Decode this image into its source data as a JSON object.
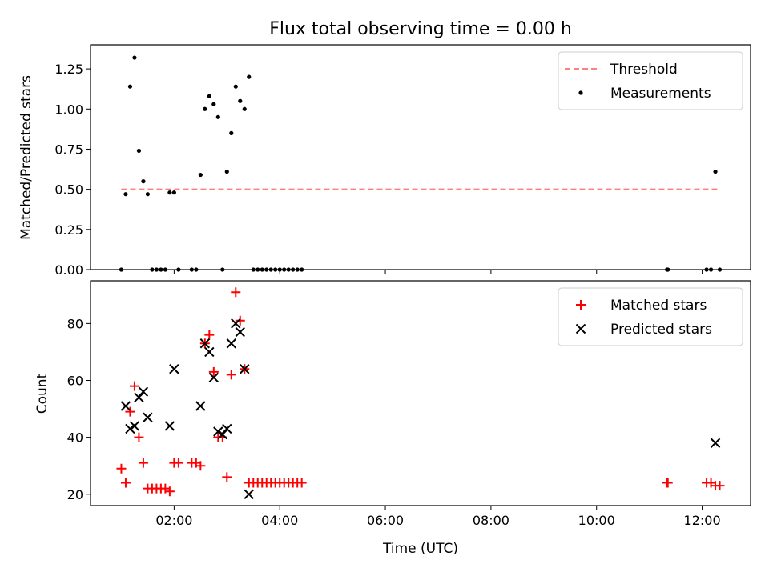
{
  "chart_data": [
    {
      "type": "scatter",
      "title": "Flux total observing time = 0.00 h",
      "xlabel": "",
      "ylabel": "Matched/Predicted stars",
      "ylim": [
        0,
        1.4
      ],
      "yticks": [
        "0.00",
        "0.25",
        "0.50",
        "0.75",
        "1.00",
        "1.25"
      ],
      "yticks_values": [
        0,
        0.25,
        0.5,
        0.75,
        1.0,
        1.25
      ],
      "x_ticks_labels_shown": false,
      "legend_position": "upper right",
      "threshold": {
        "name": "Threshold",
        "value": 0.5,
        "x_start": "01:00",
        "x_end": "12:20",
        "color": "#ff7f7f",
        "style": "dashed"
      },
      "series": [
        {
          "name": "Measurements",
          "color": "#000000",
          "marker": "dot",
          "points": [
            [
              "01:00",
              0.0
            ],
            [
              "01:05",
              0.47
            ],
            [
              "01:10",
              1.14
            ],
            [
              "01:15",
              1.32
            ],
            [
              "01:20",
              0.74
            ],
            [
              "01:25",
              0.55
            ],
            [
              "01:30",
              0.47
            ],
            [
              "01:35",
              0.0
            ],
            [
              "01:40",
              0.0
            ],
            [
              "01:45",
              0.0
            ],
            [
              "01:50",
              0.0
            ],
            [
              "01:55",
              0.48
            ],
            [
              "02:00",
              0.48
            ],
            [
              "02:05",
              0.0
            ],
            [
              "02:20",
              0.0
            ],
            [
              "02:25",
              0.0
            ],
            [
              "02:30",
              0.59
            ],
            [
              "02:35",
              1.0
            ],
            [
              "02:40",
              1.08
            ],
            [
              "02:45",
              1.03
            ],
            [
              "02:50",
              0.95
            ],
            [
              "02:55",
              0.0
            ],
            [
              "03:00",
              0.61
            ],
            [
              "03:05",
              0.85
            ],
            [
              "03:10",
              1.14
            ],
            [
              "03:15",
              1.05
            ],
            [
              "03:20",
              1.0
            ],
            [
              "03:25",
              1.2
            ],
            [
              "03:30",
              0.0
            ],
            [
              "03:35",
              0.0
            ],
            [
              "03:40",
              0.0
            ],
            [
              "03:45",
              0.0
            ],
            [
              "03:50",
              0.0
            ],
            [
              "03:55",
              0.0
            ],
            [
              "04:00",
              0.0
            ],
            [
              "04:05",
              0.0
            ],
            [
              "04:10",
              0.0
            ],
            [
              "04:15",
              0.0
            ],
            [
              "04:20",
              0.0
            ],
            [
              "04:25",
              0.0
            ],
            [
              "11:20",
              0.0
            ],
            [
              "11:21",
              0.0
            ],
            [
              "12:05",
              0.0
            ],
            [
              "12:10",
              0.0
            ],
            [
              "12:15",
              0.61
            ],
            [
              "12:20",
              0.0
            ]
          ]
        }
      ]
    },
    {
      "type": "scatter",
      "title": "",
      "xlabel": "Time (UTC)",
      "ylabel": "Count",
      "ylim": [
        16,
        95
      ],
      "yticks": [
        "20",
        "40",
        "60",
        "80"
      ],
      "yticks_values": [
        20,
        40,
        60,
        80
      ],
      "xlim": [
        "00:25",
        "12:55"
      ],
      "xticks": [
        "02:00",
        "04:00",
        "06:00",
        "08:00",
        "10:00",
        "12:00"
      ],
      "legend_position": "upper right",
      "series": [
        {
          "name": "Matched stars",
          "color": "#ff0000",
          "marker": "plus",
          "points": [
            [
              "01:00",
              29
            ],
            [
              "01:05",
              24
            ],
            [
              "01:10",
              49
            ],
            [
              "01:15",
              58
            ],
            [
              "01:20",
              40
            ],
            [
              "01:25",
              31
            ],
            [
              "01:30",
              22
            ],
            [
              "01:35",
              22
            ],
            [
              "01:40",
              22
            ],
            [
              "01:45",
              22
            ],
            [
              "01:50",
              22
            ],
            [
              "01:55",
              21
            ],
            [
              "02:00",
              31
            ],
            [
              "02:05",
              31
            ],
            [
              "02:20",
              31
            ],
            [
              "02:25",
              31
            ],
            [
              "02:30",
              30
            ],
            [
              "02:35",
              73
            ],
            [
              "02:40",
              76
            ],
            [
              "02:45",
              63
            ],
            [
              "02:50",
              40
            ],
            [
              "02:55",
              40
            ],
            [
              "03:00",
              26
            ],
            [
              "03:05",
              62
            ],
            [
              "03:10",
              91
            ],
            [
              "03:15",
              81
            ],
            [
              "03:20",
              64
            ],
            [
              "03:25",
              24
            ],
            [
              "03:30",
              24
            ],
            [
              "03:35",
              24
            ],
            [
              "03:40",
              24
            ],
            [
              "03:45",
              24
            ],
            [
              "03:50",
              24
            ],
            [
              "03:55",
              24
            ],
            [
              "04:00",
              24
            ],
            [
              "04:05",
              24
            ],
            [
              "04:10",
              24
            ],
            [
              "04:15",
              24
            ],
            [
              "04:20",
              24
            ],
            [
              "04:25",
              24
            ],
            [
              "11:20",
              24
            ],
            [
              "11:21",
              24
            ],
            [
              "12:05",
              24
            ],
            [
              "12:10",
              24
            ],
            [
              "12:15",
              23
            ],
            [
              "12:20",
              23
            ]
          ]
        },
        {
          "name": "Predicted stars",
          "color": "#000000",
          "marker": "x",
          "points": [
            [
              "01:05",
              51
            ],
            [
              "01:10",
              43
            ],
            [
              "01:15",
              44
            ],
            [
              "01:20",
              54
            ],
            [
              "01:25",
              56
            ],
            [
              "01:30",
              47
            ],
            [
              "01:55",
              44
            ],
            [
              "02:00",
              64
            ],
            [
              "02:30",
              51
            ],
            [
              "02:35",
              73
            ],
            [
              "02:40",
              70
            ],
            [
              "02:45",
              61
            ],
            [
              "02:50",
              42
            ],
            [
              "02:55",
              41
            ],
            [
              "03:00",
              43
            ],
            [
              "03:05",
              73
            ],
            [
              "03:10",
              80
            ],
            [
              "03:15",
              77
            ],
            [
              "03:20",
              64
            ],
            [
              "03:25",
              20
            ],
            [
              "12:15",
              38
            ]
          ]
        }
      ]
    }
  ]
}
